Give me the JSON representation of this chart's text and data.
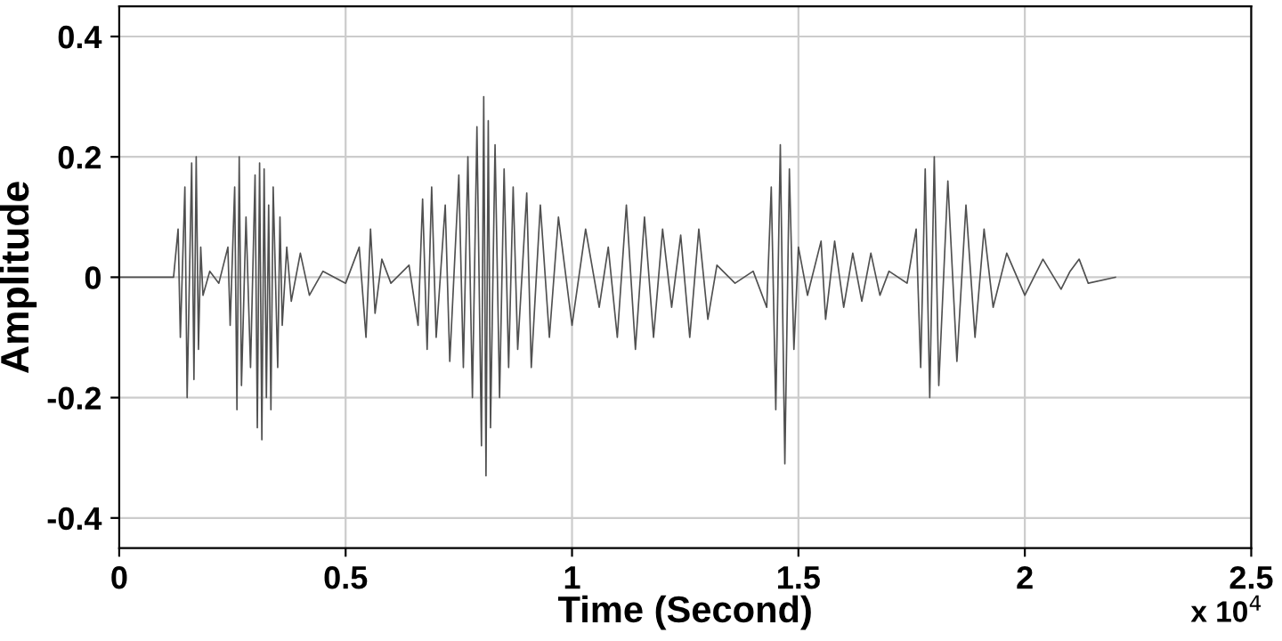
{
  "chart_data": {
    "type": "line",
    "xlabel": "Time (Second)",
    "ylabel": "Amplitude",
    "annotations": [
      "x 10$^{4}$"
    ],
    "xlim": [
      0,
      2.5
    ],
    "xticks": [
      0,
      0.5,
      1,
      1.5,
      2,
      2.5
    ],
    "ylim": [
      -0.45,
      0.45
    ],
    "yticks": [
      {
        "value": -0.4,
        "label": "-0.4"
      },
      {
        "value": -0.2,
        "label": "-0.2"
      },
      0,
      0.2,
      0.4
    ],
    "grid": true,
    "line_style": "solid",
    "series": [
      {
        "color": "#505050",
        "x": [
          0,
          0.12,
          0.13,
          0.135,
          0.145,
          0.15,
          0.16,
          0.165,
          0.17,
          0.175,
          0.18,
          0.185,
          0.2,
          0.22,
          0.24,
          0.245,
          0.255,
          0.26,
          0.265,
          0.27,
          0.28,
          0.29,
          0.3,
          0.305,
          0.31,
          0.315,
          0.32,
          0.325,
          0.33,
          0.335,
          0.34,
          0.35,
          0.355,
          0.36,
          0.37,
          0.38,
          0.4,
          0.42,
          0.45,
          0.5,
          0.53,
          0.545,
          0.555,
          0.565,
          0.58,
          0.6,
          0.64,
          0.66,
          0.67,
          0.68,
          0.69,
          0.7,
          0.72,
          0.73,
          0.75,
          0.76,
          0.77,
          0.78,
          0.79,
          0.8,
          0.805,
          0.81,
          0.815,
          0.82,
          0.83,
          0.84,
          0.85,
          0.86,
          0.87,
          0.88,
          0.9,
          0.91,
          0.93,
          0.95,
          0.97,
          1.0,
          1.03,
          1.06,
          1.08,
          1.1,
          1.12,
          1.14,
          1.16,
          1.18,
          1.2,
          1.22,
          1.24,
          1.26,
          1.28,
          1.3,
          1.32,
          1.36,
          1.4,
          1.43,
          1.44,
          1.45,
          1.46,
          1.47,
          1.48,
          1.49,
          1.5,
          1.52,
          1.55,
          1.56,
          1.58,
          1.6,
          1.62,
          1.64,
          1.66,
          1.68,
          1.7,
          1.74,
          1.76,
          1.77,
          1.78,
          1.79,
          1.8,
          1.81,
          1.83,
          1.85,
          1.87,
          1.89,
          1.91,
          1.93,
          1.96,
          2.0,
          2.04,
          2.08,
          2.1,
          2.12,
          2.14,
          2.2
        ],
        "values": [
          0,
          0,
          0.08,
          -0.1,
          0.15,
          -0.2,
          0.19,
          -0.17,
          0.2,
          -0.12,
          0.05,
          -0.03,
          0.01,
          -0.01,
          0.05,
          -0.08,
          0.15,
          -0.22,
          0.2,
          -0.18,
          0.1,
          -0.15,
          0.17,
          -0.25,
          0.19,
          -0.27,
          0.18,
          -0.2,
          0.12,
          -0.22,
          0.15,
          -0.15,
          0.1,
          -0.08,
          0.05,
          -0.04,
          0.04,
          -0.03,
          0.01,
          -0.01,
          0.05,
          -0.1,
          0.08,
          -0.06,
          0.03,
          -0.01,
          0.02,
          -0.08,
          0.13,
          -0.12,
          0.15,
          -0.1,
          0.12,
          -0.14,
          0.17,
          -0.15,
          0.2,
          -0.2,
          0.25,
          -0.28,
          0.3,
          -0.33,
          0.26,
          -0.25,
          0.22,
          -0.2,
          0.18,
          -0.15,
          0.15,
          -0.12,
          0.14,
          -0.15,
          0.12,
          -0.1,
          0.1,
          -0.08,
          0.08,
          -0.05,
          0.05,
          -0.1,
          0.12,
          -0.12,
          0.1,
          -0.1,
          0.08,
          -0.05,
          0.07,
          -0.1,
          0.08,
          -0.07,
          0.02,
          -0.01,
          0.01,
          -0.05,
          0.15,
          -0.22,
          0.22,
          -0.31,
          0.18,
          -0.12,
          0.05,
          -0.03,
          0.06,
          -0.07,
          0.06,
          -0.05,
          0.04,
          -0.04,
          0.04,
          -0.03,
          0.01,
          -0.01,
          0.08,
          -0.15,
          0.18,
          -0.2,
          0.2,
          -0.18,
          0.16,
          -0.14,
          0.12,
          -0.1,
          0.08,
          -0.05,
          0.04,
          -0.03,
          0.03,
          -0.02,
          0.01,
          0.03,
          -0.01,
          0
        ]
      }
    ]
  }
}
